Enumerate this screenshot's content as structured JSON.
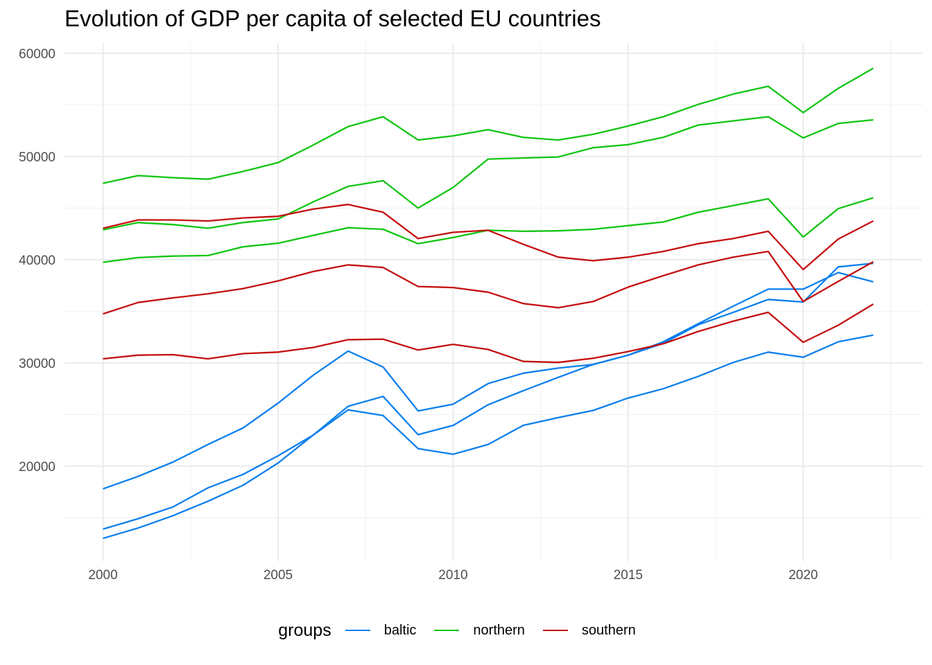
{
  "chart_data": {
    "type": "line",
    "title": "Evolution of GDP per capita of selected EU countries",
    "xlabel": "",
    "ylabel": "",
    "xlim": [
      1998.9,
      2023.4
    ],
    "ylim": [
      10800,
      61000
    ],
    "x_ticks": [
      2000,
      2005,
      2010,
      2015,
      2020
    ],
    "x_minor": [
      2002.5,
      2007.5,
      2012.5,
      2017.5,
      2022.5
    ],
    "y_ticks": [
      20000,
      30000,
      40000,
      50000,
      60000
    ],
    "y_minor": [
      15000,
      25000,
      35000,
      45000,
      55000
    ],
    "grid": true,
    "legend_position": "bottom",
    "legend_title": "groups",
    "groups": [
      {
        "name": "baltic",
        "color": "#0a7fed"
      },
      {
        "name": "northern",
        "color": "#11c511"
      },
      {
        "name": "southern",
        "color": "#c40f0f"
      }
    ],
    "x": [
      2000,
      2001,
      2002,
      2003,
      2004,
      2005,
      2006,
      2007,
      2008,
      2009,
      2010,
      2011,
      2012,
      2013,
      2014,
      2015,
      2016,
      2017,
      2018,
      2019,
      2020,
      2021,
      2022
    ],
    "series": [
      {
        "group": "baltic",
        "values": [
          17800,
          19000,
          20400,
          22100,
          23700,
          26100,
          28800,
          31150,
          29600,
          25350,
          26000,
          28000,
          29000,
          29500,
          29850,
          30750,
          31900,
          33700,
          34900,
          36150,
          35900,
          39300,
          39650
        ]
      },
      {
        "group": "baltic",
        "values": [
          13900,
          14900,
          16050,
          17900,
          19200,
          21000,
          23000,
          25800,
          26750,
          23050,
          23950,
          25950,
          27300,
          28600,
          29850,
          30750,
          32050,
          33800,
          35500,
          37150,
          37150,
          38750,
          37850
        ]
      },
      {
        "group": "baltic",
        "values": [
          13000,
          14000,
          15200,
          16600,
          18150,
          20300,
          23000,
          25450,
          24900,
          21700,
          21150,
          22100,
          23950,
          24700,
          25400,
          26600,
          27500,
          28700,
          30050,
          31050,
          30550,
          32050,
          32700
        ]
      },
      {
        "group": "northern",
        "values": [
          47400,
          48150,
          47950,
          47800,
          48550,
          49400,
          51100,
          52900,
          53850,
          51600,
          52000,
          52600,
          51850,
          51600,
          52150,
          52950,
          53850,
          55050,
          56050,
          56800,
          54250,
          56600,
          58550
        ]
      },
      {
        "group": "northern",
        "values": [
          42900,
          43600,
          43400,
          43050,
          43600,
          43950,
          45600,
          47100,
          47650,
          45000,
          47000,
          49750,
          49850,
          49950,
          50850,
          51150,
          51850,
          53050,
          53450,
          53850,
          51800,
          53200,
          53550
        ]
      },
      {
        "group": "northern",
        "values": [
          39750,
          40200,
          40350,
          40400,
          41250,
          41600,
          42350,
          43100,
          42950,
          41550,
          42150,
          42850,
          42750,
          42800,
          42950,
          43300,
          43650,
          44600,
          45250,
          45900,
          42200,
          44950,
          46000
        ]
      },
      {
        "group": "southern",
        "values": [
          43050,
          43850,
          43850,
          43750,
          44050,
          44200,
          44900,
          45350,
          44600,
          42050,
          42650,
          42850,
          41500,
          40250,
          39900,
          40250,
          40800,
          41550,
          42050,
          42750,
          39050,
          42000,
          43750
        ]
      },
      {
        "group": "southern",
        "values": [
          34750,
          35850,
          36300,
          36700,
          37200,
          37950,
          38850,
          39500,
          39250,
          37400,
          37300,
          36850,
          35750,
          35350,
          35950,
          37350,
          38450,
          39500,
          40250,
          40800,
          35950,
          37900,
          39800
        ]
      },
      {
        "group": "southern",
        "values": [
          30400,
          30750,
          30800,
          30400,
          30900,
          31050,
          31500,
          32250,
          32300,
          31250,
          31800,
          31300,
          30150,
          30050,
          30450,
          31100,
          31850,
          33050,
          34050,
          34900,
          32000,
          33650,
          35700
        ]
      }
    ]
  }
}
